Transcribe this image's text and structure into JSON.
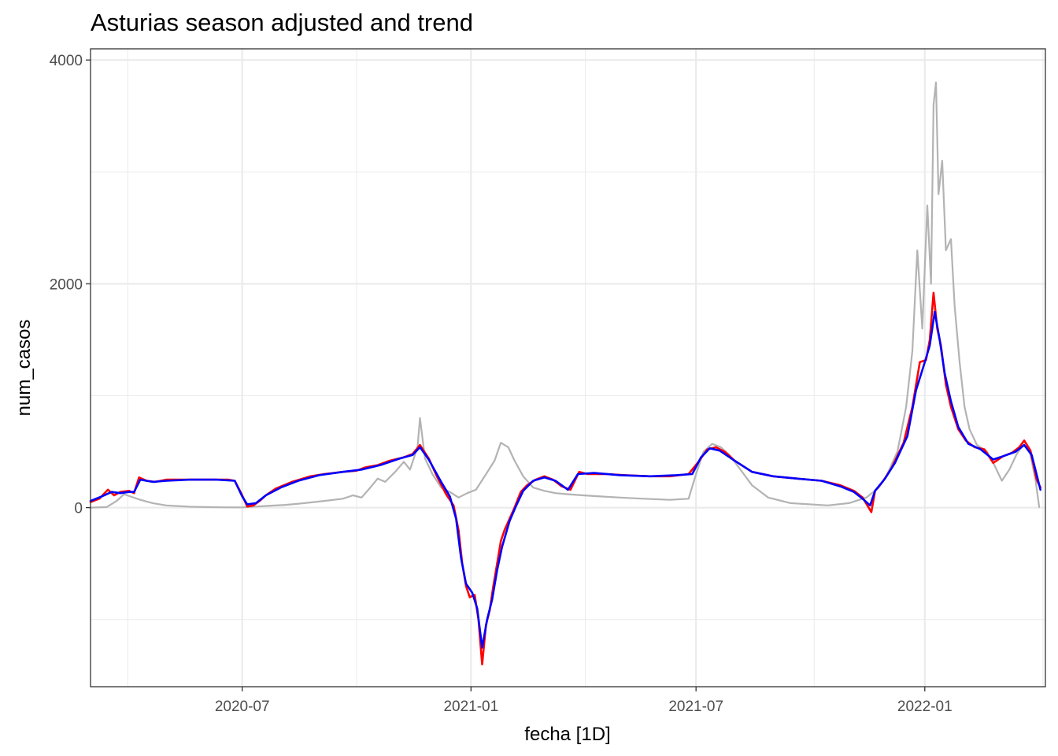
{
  "chart_data": {
    "type": "line",
    "title": "Asturias season adjusted and trend",
    "xlabel": "fecha [1D]",
    "ylabel": "num_casos",
    "x_range": [
      "2020-03-01",
      "2022-04-08"
    ],
    "ylim": [
      -1600,
      4100
    ],
    "y_ticks": [
      {
        "value": 0,
        "label": "0"
      },
      {
        "value": 2000,
        "label": "2000"
      },
      {
        "value": 4000,
        "label": "4000"
      }
    ],
    "x_ticks": [
      {
        "value": "2020-07-01",
        "label": "2020-07"
      },
      {
        "value": "2021-01-01",
        "label": "2021-01"
      },
      {
        "value": "2021-07-01",
        "label": "2021-07"
      },
      {
        "value": "2022-01-01",
        "label": "2022-01"
      }
    ],
    "grid": true,
    "legend": "none",
    "series": [
      {
        "color": "#b3b3b3",
        "points": [
          [
            "2020-03-01",
            0
          ],
          [
            "2020-03-14",
            5
          ],
          [
            "2020-03-22",
            60
          ],
          [
            "2020-03-28",
            120
          ],
          [
            "2020-04-02",
            100
          ],
          [
            "2020-04-10",
            70
          ],
          [
            "2020-04-20",
            40
          ],
          [
            "2020-05-01",
            20
          ],
          [
            "2020-05-20",
            8
          ],
          [
            "2020-06-15",
            3
          ],
          [
            "2020-07-01",
            2
          ],
          [
            "2020-07-20",
            15
          ],
          [
            "2020-08-05",
            25
          ],
          [
            "2020-08-20",
            40
          ],
          [
            "2020-09-05",
            60
          ],
          [
            "2020-09-20",
            80
          ],
          [
            "2020-09-28",
            110
          ],
          [
            "2020-10-05",
            90
          ],
          [
            "2020-10-12",
            180
          ],
          [
            "2020-10-18",
            260
          ],
          [
            "2020-10-24",
            230
          ],
          [
            "2020-11-01",
            320
          ],
          [
            "2020-11-08",
            410
          ],
          [
            "2020-11-13",
            340
          ],
          [
            "2020-11-19",
            540
          ],
          [
            "2020-11-21",
            800
          ],
          [
            "2020-11-25",
            440
          ],
          [
            "2020-12-01",
            300
          ],
          [
            "2020-12-08",
            180
          ],
          [
            "2020-12-15",
            140
          ],
          [
            "2020-12-22",
            90
          ],
          [
            "2020-12-29",
            130
          ],
          [
            "2021-01-05",
            160
          ],
          [
            "2021-01-12",
            280
          ],
          [
            "2021-01-20",
            420
          ],
          [
            "2021-01-25",
            580
          ],
          [
            "2021-01-31",
            540
          ],
          [
            "2021-02-05",
            420
          ],
          [
            "2021-02-12",
            280
          ],
          [
            "2021-02-20",
            180
          ],
          [
            "2021-03-01",
            150
          ],
          [
            "2021-03-10",
            130
          ],
          [
            "2021-03-20",
            120
          ],
          [
            "2021-04-01",
            110
          ],
          [
            "2021-04-15",
            100
          ],
          [
            "2021-05-01",
            90
          ],
          [
            "2021-05-20",
            80
          ],
          [
            "2021-06-10",
            70
          ],
          [
            "2021-06-25",
            80
          ],
          [
            "2021-07-01",
            300
          ],
          [
            "2021-07-07",
            500
          ],
          [
            "2021-07-14",
            570
          ],
          [
            "2021-07-21",
            540
          ],
          [
            "2021-07-28",
            470
          ],
          [
            "2021-08-05",
            350
          ],
          [
            "2021-08-15",
            200
          ],
          [
            "2021-08-28",
            90
          ],
          [
            "2021-09-15",
            40
          ],
          [
            "2021-10-15",
            20
          ],
          [
            "2021-11-01",
            40
          ],
          [
            "2021-11-15",
            90
          ],
          [
            "2021-11-25",
            180
          ],
          [
            "2021-12-01",
            280
          ],
          [
            "2021-12-10",
            500
          ],
          [
            "2021-12-17",
            900
          ],
          [
            "2021-12-22",
            1400
          ],
          [
            "2021-12-26",
            2300
          ],
          [
            "2021-12-30",
            1600
          ],
          [
            "2022-01-03",
            2700
          ],
          [
            "2022-01-06",
            2000
          ],
          [
            "2022-01-08",
            3600
          ],
          [
            "2022-01-10",
            3800
          ],
          [
            "2022-01-12",
            2800
          ],
          [
            "2022-01-15",
            3100
          ],
          [
            "2022-01-18",
            2300
          ],
          [
            "2022-01-22",
            2400
          ],
          [
            "2022-01-25",
            1800
          ],
          [
            "2022-01-29",
            1300
          ],
          [
            "2022-02-02",
            900
          ],
          [
            "2022-02-06",
            700
          ],
          [
            "2022-02-12",
            560
          ],
          [
            "2022-02-20",
            500
          ],
          [
            "2022-02-26",
            380
          ],
          [
            "2022-03-04",
            240
          ],
          [
            "2022-03-10",
            340
          ],
          [
            "2022-03-16",
            480
          ],
          [
            "2022-03-21",
            560
          ],
          [
            "2022-03-26",
            520
          ],
          [
            "2022-03-31",
            250
          ],
          [
            "2022-04-03",
            5
          ]
        ]
      },
      {
        "color": "#ff0000",
        "points": [
          [
            "2020-03-01",
            50
          ],
          [
            "2020-03-08",
            80
          ],
          [
            "2020-03-15",
            160
          ],
          [
            "2020-03-20",
            110
          ],
          [
            "2020-03-25",
            140
          ],
          [
            "2020-04-01",
            150
          ],
          [
            "2020-04-05",
            130
          ],
          [
            "2020-04-09",
            270
          ],
          [
            "2020-04-15",
            240
          ],
          [
            "2020-04-22",
            230
          ],
          [
            "2020-05-01",
            250
          ],
          [
            "2020-05-15",
            250
          ],
          [
            "2020-06-01",
            250
          ],
          [
            "2020-06-20",
            250
          ],
          [
            "2020-06-25",
            240
          ],
          [
            "2020-07-01",
            110
          ],
          [
            "2020-07-05",
            10
          ],
          [
            "2020-07-10",
            20
          ],
          [
            "2020-07-15",
            60
          ],
          [
            "2020-07-20",
            110
          ],
          [
            "2020-07-28",
            170
          ],
          [
            "2020-08-10",
            230
          ],
          [
            "2020-08-25",
            280
          ],
          [
            "2020-09-05",
            300
          ],
          [
            "2020-09-20",
            320
          ],
          [
            "2020-10-01",
            330
          ],
          [
            "2020-10-08",
            360
          ],
          [
            "2020-10-18",
            380
          ],
          [
            "2020-10-28",
            420
          ],
          [
            "2020-11-08",
            450
          ],
          [
            "2020-11-15",
            480
          ],
          [
            "2020-11-21",
            560
          ],
          [
            "2020-11-28",
            440
          ],
          [
            "2020-12-05",
            270
          ],
          [
            "2020-12-12",
            120
          ],
          [
            "2020-12-18",
            20
          ],
          [
            "2020-12-22",
            -200
          ],
          [
            "2020-12-25",
            -500
          ],
          [
            "2020-12-28",
            -700
          ],
          [
            "2020-12-31",
            -800
          ],
          [
            "2021-01-04",
            -780
          ],
          [
            "2021-01-07",
            -1000
          ],
          [
            "2021-01-10",
            -1400
          ],
          [
            "2021-01-13",
            -1050
          ],
          [
            "2021-01-16",
            -920
          ],
          [
            "2021-01-19",
            -700
          ],
          [
            "2021-01-22",
            -500
          ],
          [
            "2021-01-25",
            -300
          ],
          [
            "2021-01-28",
            -200
          ],
          [
            "2021-02-01",
            -100
          ],
          [
            "2021-02-05",
            0
          ],
          [
            "2021-02-10",
            140
          ],
          [
            "2021-02-15",
            200
          ],
          [
            "2021-02-22",
            250
          ],
          [
            "2021-03-01",
            280
          ],
          [
            "2021-03-08",
            250
          ],
          [
            "2021-03-15",
            190
          ],
          [
            "2021-03-22",
            160
          ],
          [
            "2021-03-29",
            320
          ],
          [
            "2021-04-05",
            300
          ],
          [
            "2021-04-20",
            300
          ],
          [
            "2021-05-05",
            290
          ],
          [
            "2021-05-25",
            280
          ],
          [
            "2021-06-10",
            280
          ],
          [
            "2021-06-25",
            300
          ],
          [
            "2021-07-03",
            410
          ],
          [
            "2021-07-10",
            520
          ],
          [
            "2021-07-17",
            540
          ],
          [
            "2021-07-24",
            500
          ],
          [
            "2021-08-01",
            420
          ],
          [
            "2021-08-15",
            320
          ],
          [
            "2021-09-01",
            280
          ],
          [
            "2021-09-20",
            260
          ],
          [
            "2021-10-10",
            240
          ],
          [
            "2021-10-25",
            200
          ],
          [
            "2021-11-05",
            150
          ],
          [
            "2021-11-12",
            90
          ],
          [
            "2021-11-19",
            -40
          ],
          [
            "2021-11-22",
            150
          ],
          [
            "2021-11-28",
            230
          ],
          [
            "2021-12-05",
            350
          ],
          [
            "2021-12-15",
            580
          ],
          [
            "2021-12-22",
            900
          ],
          [
            "2021-12-28",
            1300
          ],
          [
            "2022-01-02",
            1320
          ],
          [
            "2022-01-05",
            1500
          ],
          [
            "2022-01-08",
            1920
          ],
          [
            "2022-01-11",
            1600
          ],
          [
            "2022-01-14",
            1450
          ],
          [
            "2022-01-18",
            1100
          ],
          [
            "2022-01-22",
            900
          ],
          [
            "2022-01-28",
            700
          ],
          [
            "2022-02-03",
            600
          ],
          [
            "2022-02-10",
            540
          ],
          [
            "2022-02-18",
            520
          ],
          [
            "2022-02-25",
            400
          ],
          [
            "2022-03-05",
            460
          ],
          [
            "2022-03-12",
            490
          ],
          [
            "2022-03-18",
            540
          ],
          [
            "2022-03-22",
            600
          ],
          [
            "2022-03-27",
            510
          ],
          [
            "2022-04-01",
            250
          ],
          [
            "2022-04-04",
            180
          ]
        ]
      },
      {
        "color": "#0000ff",
        "points": [
          [
            "2020-03-01",
            60
          ],
          [
            "2020-03-10",
            100
          ],
          [
            "2020-03-18",
            140
          ],
          [
            "2020-03-25",
            130
          ],
          [
            "2020-04-01",
            140
          ],
          [
            "2020-04-05",
            140
          ],
          [
            "2020-04-10",
            250
          ],
          [
            "2020-04-20",
            230
          ],
          [
            "2020-05-01",
            240
          ],
          [
            "2020-05-20",
            250
          ],
          [
            "2020-06-10",
            250
          ],
          [
            "2020-06-25",
            240
          ],
          [
            "2020-07-01",
            100
          ],
          [
            "2020-07-05",
            30
          ],
          [
            "2020-07-12",
            40
          ],
          [
            "2020-07-20",
            110
          ],
          [
            "2020-08-01",
            180
          ],
          [
            "2020-08-15",
            240
          ],
          [
            "2020-09-01",
            290
          ],
          [
            "2020-09-20",
            320
          ],
          [
            "2020-10-05",
            340
          ],
          [
            "2020-10-20",
            380
          ],
          [
            "2020-11-05",
            440
          ],
          [
            "2020-11-15",
            470
          ],
          [
            "2020-11-21",
            540
          ],
          [
            "2020-11-28",
            430
          ],
          [
            "2020-12-08",
            230
          ],
          [
            "2020-12-15",
            100
          ],
          [
            "2020-12-20",
            -100
          ],
          [
            "2020-12-24",
            -450
          ],
          [
            "2020-12-28",
            -680
          ],
          [
            "2021-01-02",
            -760
          ],
          [
            "2021-01-06",
            -900
          ],
          [
            "2021-01-10",
            -1250
          ],
          [
            "2021-01-14",
            -1000
          ],
          [
            "2021-01-18",
            -820
          ],
          [
            "2021-01-22",
            -560
          ],
          [
            "2021-01-26",
            -350
          ],
          [
            "2021-02-01",
            -120
          ],
          [
            "2021-02-06",
            10
          ],
          [
            "2021-02-12",
            150
          ],
          [
            "2021-02-20",
            240
          ],
          [
            "2021-03-01",
            270
          ],
          [
            "2021-03-10",
            240
          ],
          [
            "2021-03-20",
            160
          ],
          [
            "2021-03-28",
            300
          ],
          [
            "2021-04-10",
            310
          ],
          [
            "2021-05-01",
            290
          ],
          [
            "2021-05-25",
            280
          ],
          [
            "2021-06-15",
            290
          ],
          [
            "2021-06-28",
            300
          ],
          [
            "2021-07-05",
            450
          ],
          [
            "2021-07-12",
            530
          ],
          [
            "2021-07-20",
            510
          ],
          [
            "2021-08-01",
            420
          ],
          [
            "2021-08-15",
            320
          ],
          [
            "2021-09-01",
            280
          ],
          [
            "2021-09-20",
            260
          ],
          [
            "2021-10-10",
            240
          ],
          [
            "2021-10-25",
            190
          ],
          [
            "2021-11-05",
            140
          ],
          [
            "2021-11-12",
            80
          ],
          [
            "2021-11-18",
            20
          ],
          [
            "2021-11-22",
            150
          ],
          [
            "2021-11-30",
            260
          ],
          [
            "2021-12-08",
            400
          ],
          [
            "2021-12-18",
            640
          ],
          [
            "2021-12-25",
            1050
          ],
          [
            "2022-01-01",
            1300
          ],
          [
            "2022-01-05",
            1450
          ],
          [
            "2022-01-09",
            1750
          ],
          [
            "2022-01-13",
            1500
          ],
          [
            "2022-01-17",
            1200
          ],
          [
            "2022-01-22",
            950
          ],
          [
            "2022-01-28",
            720
          ],
          [
            "2022-02-05",
            570
          ],
          [
            "2022-02-15",
            520
          ],
          [
            "2022-02-25",
            430
          ],
          [
            "2022-03-05",
            460
          ],
          [
            "2022-03-15",
            500
          ],
          [
            "2022-03-22",
            560
          ],
          [
            "2022-03-28",
            470
          ],
          [
            "2022-04-04",
            160
          ]
        ]
      }
    ]
  }
}
